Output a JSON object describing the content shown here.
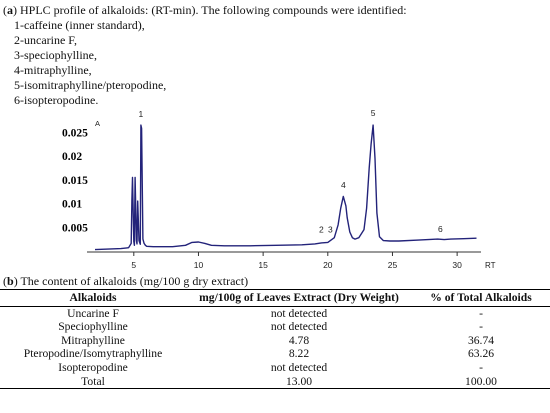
{
  "panel_a": {
    "label": "a",
    "caption": "HPLC profile of alkaloids: (RT-min). The following compounds were identified:",
    "compounds": [
      "1-caffeine (inner standard),",
      "2-uncarine F,",
      "3-speciophylline,",
      "4-mitraphylline,",
      "5-isomitraphylline/pteropodine,",
      "6-isopteropodine."
    ]
  },
  "chart_data": {
    "type": "line",
    "title": "",
    "ylabel": "A",
    "xlabel": "RT",
    "xlim": [
      2,
      32
    ],
    "ylim": [
      0,
      0.028
    ],
    "y_ticks": [
      "0.025",
      "0.02",
      "0.015",
      "0.01",
      "0.005"
    ],
    "y_tick_values": [
      0.025,
      0.02,
      0.015,
      0.01,
      0.005
    ],
    "x_ticks": [
      "5",
      "10",
      "15",
      "20",
      "25",
      "30"
    ],
    "x_tick_values": [
      5,
      10,
      15,
      20,
      25,
      30
    ],
    "line_color": "#23237a",
    "series": [
      {
        "x": [
          2.0,
          3.0,
          4.0,
          4.6,
          4.8,
          4.85,
          4.9,
          5.0,
          5.05,
          5.1,
          5.2,
          5.25,
          5.3,
          5.4,
          5.5,
          5.55,
          5.6,
          5.7,
          5.8,
          5.9,
          6.0,
          6.5,
          7.0,
          8.0,
          9.0,
          9.5,
          10.0,
          10.5,
          11.0,
          12.0,
          14.0,
          16.0,
          18.0,
          19.0,
          19.5,
          20.0,
          20.5,
          20.8,
          21.0,
          21.2,
          21.4,
          21.5,
          21.7,
          21.9,
          22.1,
          22.4,
          22.8,
          23.0,
          23.2,
          23.35,
          23.5,
          23.65,
          23.8,
          24.0,
          24.3,
          24.8,
          25.5,
          27.0,
          28.5,
          29.0,
          29.5,
          30.5,
          31.5
        ],
        "y": [
          0.0003,
          0.0004,
          0.0005,
          0.0007,
          0.0016,
          0.0108,
          0.0155,
          0.002,
          0.0012,
          0.0155,
          0.0022,
          0.0015,
          0.0105,
          0.0022,
          0.0014,
          0.0265,
          0.0258,
          0.0025,
          0.0016,
          0.0012,
          0.001,
          0.0009,
          0.0009,
          0.0009,
          0.0012,
          0.0018,
          0.0019,
          0.0016,
          0.0012,
          0.0011,
          0.0011,
          0.0012,
          0.0013,
          0.0015,
          0.0017,
          0.0018,
          0.0028,
          0.0055,
          0.009,
          0.0115,
          0.0095,
          0.007,
          0.004,
          0.0028,
          0.0025,
          0.0028,
          0.0045,
          0.009,
          0.0175,
          0.0225,
          0.0265,
          0.0195,
          0.008,
          0.003,
          0.0022,
          0.0021,
          0.0021,
          0.0023,
          0.0025,
          0.0024,
          0.0025,
          0.0026,
          0.0027
        ]
      }
    ],
    "peak_labels": [
      {
        "text": "1",
        "x": 5.55,
        "y": 0.0278
      },
      {
        "text": "2",
        "x": 19.5,
        "y": 0.0035
      },
      {
        "text": "3",
        "x": 20.2,
        "y": 0.0035
      },
      {
        "text": "4",
        "x": 21.2,
        "y": 0.0128
      },
      {
        "text": "5",
        "x": 23.5,
        "y": 0.028
      },
      {
        "text": "6",
        "x": 28.7,
        "y": 0.0036
      }
    ]
  },
  "panel_b": {
    "label": "b",
    "caption": "The content of alkaloids (mg/100 g dry extract)",
    "headers": [
      "Alkaloids",
      "mg/100g of Leaves Extract (Dry Weight)",
      "% of Total Alkaloids"
    ],
    "rows": [
      [
        "Uncarine F",
        "not detected",
        "-"
      ],
      [
        "Speciophylline",
        "not detected",
        "-"
      ],
      [
        "Mitraphylline",
        "4.78",
        "36.74"
      ],
      [
        "Pteropodine/Isomytraphylline",
        "8.22",
        "63.26"
      ],
      [
        "Isopteropodine",
        "not detected",
        "-"
      ],
      [
        "Total",
        "13.00",
        "100.00"
      ]
    ]
  }
}
